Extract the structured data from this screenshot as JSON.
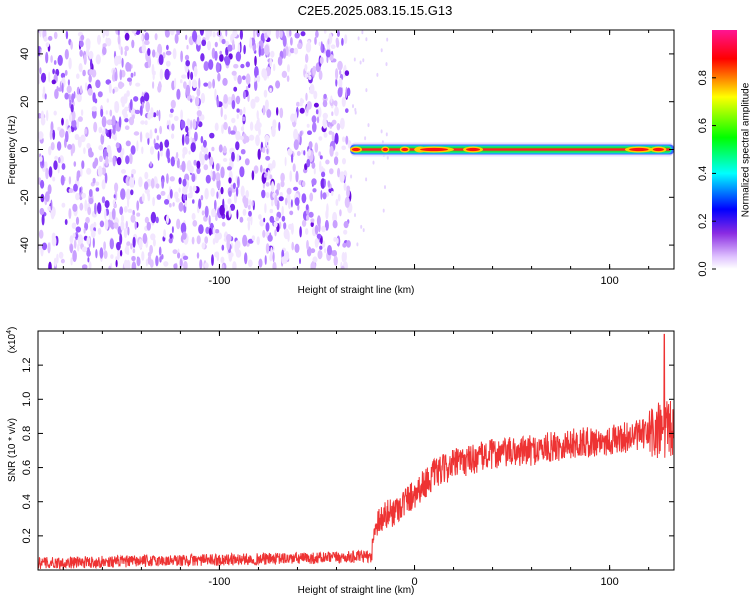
{
  "title": "C2E5.2025.083.15.15.G13",
  "chart_data": [
    {
      "type": "heatmap",
      "xlabel": "Height of straight line (km)",
      "ylabel": "Frequency (Hz)",
      "xlim": [
        -193,
        133
      ],
      "ylim": [
        -50,
        50
      ],
      "xticks": [
        -100,
        0,
        100
      ],
      "xtick_labels": [
        "-100",
        "",
        "100"
      ],
      "yticks": [
        -40,
        -20,
        0,
        20,
        40
      ],
      "ytick_labels": [
        "-40",
        "-20",
        "0",
        "20",
        "40"
      ],
      "noise_region_x": [
        -193,
        -33
      ],
      "signal_band_x": [
        -33,
        133
      ],
      "signal_band_freq_hz": 0,
      "colorbar": {
        "label": "Normalized spectral amplitude",
        "range": [
          0,
          1
        ],
        "ticks": [
          0.0,
          0.2,
          0.4,
          0.6,
          0.8
        ],
        "tick_labels": [
          "0.0",
          "0.2",
          "0.4",
          "0.6",
          "0.8"
        ],
        "colors": [
          "#ffffff",
          "#e0c4ff",
          "#8a2be2",
          "#0000ff",
          "#00ffff",
          "#00ff00",
          "#ffff00",
          "#ff0000",
          "#ff1493"
        ]
      },
      "grid": false
    },
    {
      "type": "line",
      "xlabel": "Height of straight line (km)",
      "ylabel": "SNR (10 * v/v)",
      "y_multiplier_label": "(x10",
      "y_multiplier_exp": "4",
      "y_multiplier_close": ")",
      "xlim": [
        -193,
        133
      ],
      "ylim": [
        0,
        1.4
      ],
      "xticks": [
        -100,
        0,
        100
      ],
      "xtick_labels": [
        "-100",
        "0",
        "100"
      ],
      "yticks": [
        0.2,
        0.4,
        0.6,
        0.8,
        1.0,
        1.2
      ],
      "ytick_labels": [
        "0.2",
        "0.4",
        "0.6",
        "0.8",
        "1.0",
        "1.2"
      ],
      "series_color": "#ee3333",
      "envelope": [
        {
          "x": -193,
          "y": 0.04
        },
        {
          "x": -150,
          "y": 0.05
        },
        {
          "x": -100,
          "y": 0.06
        },
        {
          "x": -50,
          "y": 0.07
        },
        {
          "x": -22,
          "y": 0.08
        },
        {
          "x": -20,
          "y": 0.28
        },
        {
          "x": -10,
          "y": 0.35
        },
        {
          "x": 0,
          "y": 0.45
        },
        {
          "x": 10,
          "y": 0.56
        },
        {
          "x": 20,
          "y": 0.62
        },
        {
          "x": 40,
          "y": 0.68
        },
        {
          "x": 60,
          "y": 0.7
        },
        {
          "x": 80,
          "y": 0.74
        },
        {
          "x": 100,
          "y": 0.76
        },
        {
          "x": 120,
          "y": 0.8
        },
        {
          "x": 133,
          "y": 0.82
        }
      ],
      "peak": {
        "x": 128,
        "y": 1.38
      },
      "grid": false
    }
  ]
}
